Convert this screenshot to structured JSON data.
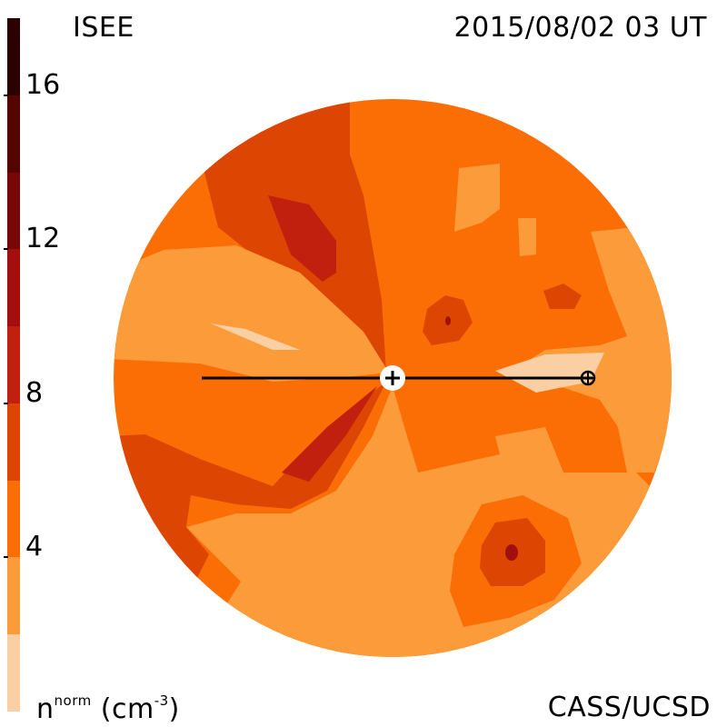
{
  "header": {
    "left_title": "ISEE",
    "timestamp": "2015/08/02 03 UT"
  },
  "footer": {
    "credit": "CASS/UCSD",
    "units_base": "n",
    "units_sup": "norm",
    "units_paren_open": "(cm",
    "units_exp": "-3",
    "units_paren_close": ")"
  },
  "colorbar": {
    "levels": [
      {
        "from": 0,
        "to": 2,
        "color": "#f9cfa3"
      },
      {
        "from": 2,
        "to": 4,
        "color": "#fb9b3a"
      },
      {
        "from": 4,
        "to": 6,
        "color": "#fb6e06"
      },
      {
        "from": 6,
        "to": 8,
        "color": "#dd4503"
      },
      {
        "from": 8,
        "to": 10,
        "color": "#c0200d"
      },
      {
        "from": 10,
        "to": 12,
        "color": "#a20f0e"
      },
      {
        "from": 12,
        "to": 14,
        "color": "#780707"
      },
      {
        "from": 14,
        "to": 16,
        "color": "#540503"
      },
      {
        "from": 16,
        "to": 18,
        "color": "#2b0201"
      }
    ],
    "range": [
      0,
      18
    ],
    "tick_labels": [
      "4",
      "8",
      "12",
      "16"
    ],
    "tick_values": [
      4,
      8,
      12,
      16
    ]
  },
  "map": {
    "background_level_color": "#fb6e06",
    "sun_marker": "sun",
    "earth_marker": "earth"
  }
}
